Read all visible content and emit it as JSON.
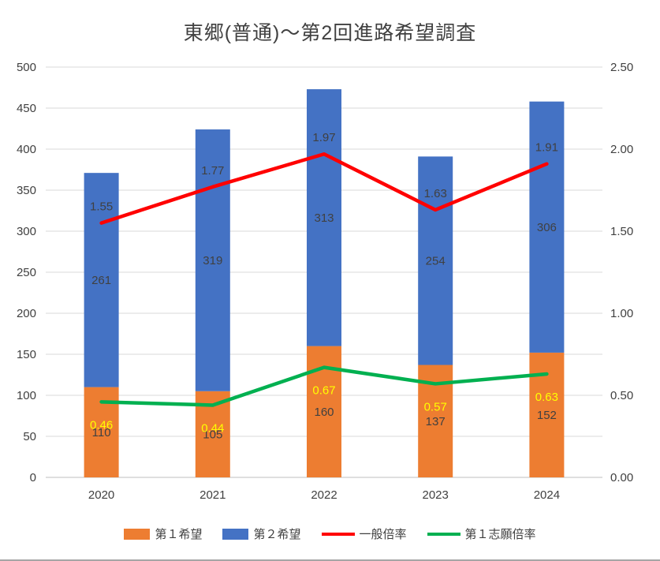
{
  "chart_data": {
    "type": "bar",
    "subtype": "stacked-bar-with-lines",
    "title": "東郷(普通)～第2回進路希望調査",
    "categories": [
      "2020",
      "2021",
      "2022",
      "2023",
      "2024"
    ],
    "bar_series": [
      {
        "name": "第１希望",
        "color": "#ED7D31",
        "label_color": "#404040",
        "values": [
          110,
          105,
          160,
          137,
          152
        ]
      },
      {
        "name": "第２希望",
        "color": "#4472C4",
        "label_color": "#404040",
        "values": [
          261,
          319,
          313,
          254,
          306
        ]
      }
    ],
    "line_series": [
      {
        "name": "一般倍率",
        "color": "#FF0000",
        "label_color": "#404040",
        "label_position": "above",
        "values": [
          1.55,
          1.77,
          1.97,
          1.63,
          1.91
        ]
      },
      {
        "name": "第１志願倍率",
        "color": "#00B050",
        "label_color": "#FFFF00",
        "label_position": "below",
        "values": [
          0.46,
          0.44,
          0.67,
          0.57,
          0.63
        ]
      }
    ],
    "left_axis": {
      "min": 0,
      "max": 500,
      "step": 50,
      "labels": [
        "0",
        "50",
        "100",
        "150",
        "200",
        "250",
        "300",
        "350",
        "400",
        "450",
        "500"
      ]
    },
    "right_axis": {
      "min": 0,
      "max": 2.5,
      "step": 0.5,
      "labels": [
        "0.00",
        "0.50",
        "1.00",
        "1.50",
        "2.00",
        "2.50"
      ]
    },
    "grid": true,
    "legend_position": "bottom",
    "colors": {
      "gridline": "#D9D9D9",
      "axis_line": "#BFBFBF",
      "axis_text": "#404040",
      "background": "#FFFFFF"
    }
  }
}
